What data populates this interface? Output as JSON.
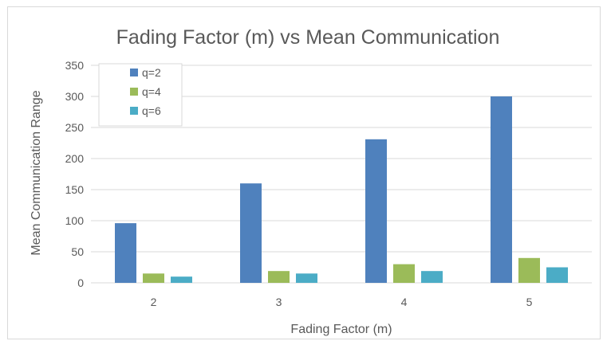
{
  "chart_data": {
    "type": "bar",
    "title": "Fading Factor (m) vs Mean Communication",
    "xlabel": "Fading Factor (m)",
    "ylabel": "Mean Communication Range",
    "categories": [
      "2",
      "3",
      "4",
      "5"
    ],
    "series": [
      {
        "name": "q=2",
        "color": "#4f81bd",
        "values": [
          96,
          160,
          231,
          300
        ]
      },
      {
        "name": "q=4",
        "color": "#9bbb59",
        "values": [
          15,
          19,
          30,
          40
        ]
      },
      {
        "name": "q=6",
        "color": "#4bacc6",
        "values": [
          10,
          15,
          19,
          25
        ]
      }
    ],
    "ylim": [
      0,
      350
    ],
    "yticks": [
      0,
      50,
      100,
      150,
      200,
      250,
      300,
      350
    ],
    "grid": true,
    "legend_position": "top-left"
  }
}
